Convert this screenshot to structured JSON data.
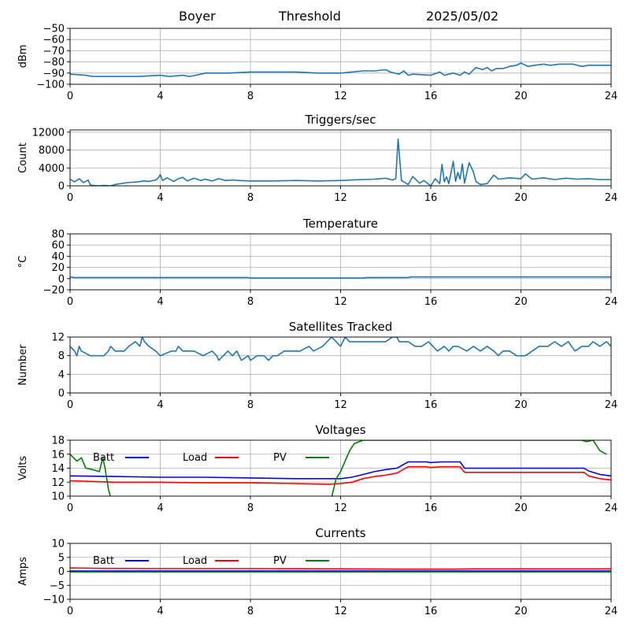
{
  "header": {
    "station": "Boyer",
    "label": "Threshold",
    "date": "2025/05/02"
  },
  "colors": {
    "series": "#1f77b4",
    "batt": "#0000ff",
    "load": "#ff0000",
    "pv": "#008000",
    "grid": "#b0b0b0"
  },
  "chart_data": [
    {
      "id": "threshold",
      "type": "line",
      "title": "",
      "xlabel": "",
      "ylabel": "dBm",
      "xlim": [
        0,
        24
      ],
      "ylim": [
        -100,
        -50
      ],
      "xticks": [
        0,
        4,
        8,
        12,
        16,
        20,
        24
      ],
      "yticks": [
        -100,
        -90,
        -80,
        -70,
        -60,
        -50
      ],
      "grid": true,
      "series": [
        {
          "color": "series",
          "x": [
            0,
            0.7,
            1,
            2,
            3,
            4,
            4.4,
            5,
            5.3,
            5.8,
            6,
            7,
            8,
            9,
            10,
            11,
            12,
            12.5,
            13,
            13.5,
            14,
            14.2,
            14.6,
            14.8,
            15,
            15.2,
            16,
            16.4,
            16.6,
            16.8,
            17,
            17.3,
            17.5,
            17.7,
            18,
            18.3,
            18.5,
            18.7,
            18.9,
            19.2,
            19.5,
            19.8,
            20,
            20.3,
            20.6,
            21,
            21.3,
            21.7,
            22,
            22.3,
            22.7,
            23,
            23.5,
            24
          ],
          "y": [
            -91,
            -92,
            -93,
            -93,
            -93,
            -92,
            -93,
            -92,
            -93,
            -91,
            -90,
            -90,
            -89,
            -89,
            -89,
            -90,
            -90,
            -89,
            -88,
            -88,
            -87,
            -89,
            -91,
            -88,
            -92,
            -91,
            -92,
            -89,
            -92,
            -91,
            -90,
            -92,
            -89,
            -91,
            -85,
            -87,
            -85,
            -88,
            -86,
            -86,
            -84,
            -83,
            -81,
            -84,
            -83,
            -82,
            -83,
            -82,
            -82,
            -82,
            -84,
            -83,
            -83,
            -83
          ]
        }
      ]
    },
    {
      "id": "triggers",
      "type": "line",
      "title": "Triggers/sec",
      "xlabel": "",
      "ylabel": "Count",
      "xlim": [
        0,
        24
      ],
      "ylim": [
        0,
        12500
      ],
      "xticks": [
        0,
        4,
        8,
        12,
        16,
        20,
        24
      ],
      "yticks": [
        0,
        4000,
        8000,
        12000
      ],
      "grid": true,
      "series": [
        {
          "color": "series",
          "x": [
            0,
            0.2,
            0.4,
            0.6,
            0.8,
            0.9,
            1.0,
            1.3,
            1.5,
            1.8,
            2.0,
            2.5,
            3.0,
            3.3,
            3.5,
            3.8,
            3.9,
            4.0,
            4.1,
            4.3,
            4.6,
            4.8,
            5.0,
            5.2,
            5.5,
            5.8,
            6.0,
            6.3,
            6.6,
            6.9,
            7.2,
            7.5,
            8,
            9,
            10,
            11,
            12,
            12.5,
            13,
            13.5,
            14,
            14.3,
            14.45,
            14.55,
            14.7,
            15.0,
            15.2,
            15.5,
            15.7,
            16.0,
            16.2,
            16.4,
            16.5,
            16.6,
            16.7,
            16.8,
            17.0,
            17.1,
            17.2,
            17.3,
            17.4,
            17.5,
            17.7,
            17.9,
            18.0,
            18.2,
            18.5,
            18.8,
            19,
            19.5,
            20,
            20.2,
            20.5,
            21,
            21.5,
            22,
            22.5,
            23,
            23.5,
            24
          ],
          "y": [
            1500,
            900,
            1600,
            700,
            1300,
            200,
            100,
            0,
            100,
            0,
            300,
            700,
            900,
            1100,
            1000,
            1300,
            1700,
            2500,
            1200,
            1800,
            1000,
            1600,
            1900,
            1100,
            1700,
            1200,
            1500,
            1100,
            1600,
            1200,
            1300,
            1200,
            1100,
            1100,
            1200,
            1100,
            1200,
            1300,
            1400,
            1500,
            1700,
            1300,
            1600,
            10500,
            1200,
            300,
            2100,
            600,
            1200,
            0,
            1600,
            500,
            4800,
            900,
            2000,
            500,
            5500,
            1000,
            3000,
            1500,
            4900,
            600,
            5200,
            3000,
            1000,
            300,
            500,
            2400,
            1500,
            1800,
            1600,
            2700,
            1500,
            1800,
            1400,
            1700,
            1500,
            1600,
            1400,
            1400
          ]
        }
      ]
    },
    {
      "id": "temperature",
      "type": "line",
      "title": "Temperature",
      "xlabel": "",
      "ylabel": "°C",
      "xlim": [
        0,
        24
      ],
      "ylim": [
        -20,
        80
      ],
      "xticks": [
        0,
        4,
        8,
        12,
        16,
        20,
        24
      ],
      "yticks": [
        -20,
        0,
        20,
        40,
        60,
        80
      ],
      "grid": true,
      "series": [
        {
          "color": "series",
          "x": [
            0,
            0.2,
            4,
            7.9,
            8,
            13,
            13.2,
            15,
            15.1,
            24
          ],
          "y": [
            3,
            2,
            2,
            2,
            1,
            1,
            2,
            2,
            3,
            3
          ]
        }
      ]
    },
    {
      "id": "satellites",
      "type": "line",
      "title": "Satellites Tracked",
      "xlabel": "",
      "ylabel": "Number",
      "xlim": [
        0,
        24
      ],
      "ylim": [
        0,
        12
      ],
      "xticks": [
        0,
        4,
        8,
        12,
        16,
        20,
        24
      ],
      "yticks": [
        0,
        4,
        8,
        12
      ],
      "grid": true,
      "series": [
        {
          "color": "series",
          "x": [
            0,
            0.2,
            0.3,
            0.4,
            0.5,
            0.9,
            1.5,
            1.7,
            1.8,
            2.0,
            2.4,
            2.6,
            2.9,
            3.1,
            3.2,
            3.3,
            3.5,
            3.8,
            4.0,
            4.5,
            4.7,
            4.8,
            5.0,
            5.5,
            5.9,
            6.3,
            6.5,
            6.6,
            6.8,
            7.0,
            7.2,
            7.4,
            7.6,
            7.9,
            8.0,
            8.3,
            8.6,
            8.8,
            9.0,
            9.2,
            9.5,
            9.8,
            10.2,
            10.6,
            10.8,
            11.2,
            11.4,
            11.6,
            11.8,
            12.0,
            12.2,
            12.4,
            12.6,
            13.0,
            13.5,
            14.0,
            14.3,
            14.5,
            14.6,
            15.0,
            15.3,
            15.6,
            15.9,
            16.3,
            16.6,
            16.8,
            17.0,
            17.2,
            17.6,
            17.9,
            18.2,
            18.5,
            18.8,
            19.0,
            19.2,
            19.5,
            19.8,
            20.2,
            20.5,
            20.8,
            21.2,
            21.5,
            21.8,
            22.1,
            22.4,
            22.7,
            23.0,
            23.2,
            23.5,
            23.8,
            24
          ],
          "y": [
            10,
            9,
            8,
            10,
            9,
            8,
            8,
            9,
            10,
            9,
            9,
            10,
            11,
            10,
            12,
            11,
            10,
            9,
            8,
            9,
            9,
            10,
            9,
            9,
            8,
            9,
            8,
            7,
            8,
            9,
            8,
            9,
            7,
            8,
            7,
            8,
            8,
            7,
            8,
            8,
            9,
            9,
            9,
            10,
            9,
            10,
            11,
            12,
            11,
            10,
            12,
            11,
            11,
            11,
            11,
            11,
            12,
            12,
            11,
            11,
            10,
            10,
            11,
            9,
            10,
            9,
            10,
            10,
            9,
            10,
            9,
            10,
            9,
            8,
            9,
            9,
            8,
            8,
            9,
            10,
            10,
            11,
            10,
            11,
            9,
            10,
            10,
            11,
            10,
            11,
            10
          ]
        }
      ]
    },
    {
      "id": "voltages",
      "type": "line",
      "title": "Voltages",
      "xlabel": "",
      "ylabel": "Volts",
      "xlim": [
        0,
        24
      ],
      "ylim": [
        10,
        18
      ],
      "xticks": [
        0,
        4,
        8,
        12,
        16,
        20,
        24
      ],
      "yticks": [
        10,
        12,
        14,
        16,
        18
      ],
      "grid": true,
      "legend": [
        "Batt",
        "Load",
        "PV"
      ],
      "series": [
        {
          "name": "Batt",
          "color": "batt",
          "x": [
            0,
            2,
            4,
            6,
            8,
            10,
            11.5,
            12,
            12.5,
            13,
            13.5,
            14,
            14.5,
            15,
            15.8,
            16,
            16.5,
            17.3,
            17.5,
            18,
            20,
            22,
            22.8,
            23,
            23.5,
            24
          ],
          "y": [
            12.9,
            12.8,
            12.7,
            12.7,
            12.6,
            12.5,
            12.5,
            12.5,
            12.7,
            13.1,
            13.5,
            13.8,
            14.0,
            14.9,
            14.9,
            14.8,
            14.9,
            14.9,
            14.0,
            14.0,
            14.0,
            14.0,
            14.0,
            13.6,
            13.1,
            12.9
          ]
        },
        {
          "name": "Load",
          "color": "load",
          "x": [
            0,
            2,
            4,
            6,
            8,
            10,
            11.5,
            12,
            12.5,
            13,
            13.5,
            14,
            14.5,
            15,
            15.8,
            16,
            16.5,
            17.3,
            17.5,
            18,
            20,
            22,
            22.8,
            23,
            23.5,
            24
          ],
          "y": [
            12.2,
            12.0,
            12.0,
            11.9,
            11.9,
            11.8,
            11.7,
            11.8,
            12.0,
            12.5,
            12.8,
            13.0,
            13.3,
            14.2,
            14.2,
            14.1,
            14.2,
            14.2,
            13.4,
            13.4,
            13.4,
            13.4,
            13.4,
            12.9,
            12.5,
            12.3
          ]
        },
        {
          "name": "PV",
          "color": "pv",
          "x": [
            0,
            0.3,
            0.5,
            0.7,
            1.0,
            1.3,
            1.45,
            1.55,
            1.7,
            1.8,
            11.6,
            11.8,
            12.0,
            12.2,
            12.4,
            12.6,
            13.0,
            14.8,
            22.7,
            22.9,
            23.2,
            23.5,
            23.8
          ],
          "y": [
            16.0,
            15.0,
            15.5,
            14.0,
            13.8,
            13.5,
            15.5,
            14.0,
            11.0,
            9.8,
            9.8,
            12.5,
            13.5,
            15.0,
            16.5,
            17.5,
            18.0,
            18.0,
            18.0,
            17.8,
            18.0,
            16.5,
            16.0
          ]
        }
      ]
    },
    {
      "id": "currents",
      "type": "line",
      "title": "Currents",
      "xlabel": "",
      "ylabel": "Amps",
      "xlim": [
        0,
        24
      ],
      "ylim": [
        -10,
        10
      ],
      "xticks": [
        0,
        4,
        8,
        12,
        16,
        20,
        24
      ],
      "yticks": [
        -10,
        -5,
        0,
        5,
        10
      ],
      "grid": true,
      "legend": [
        "Batt",
        "Load",
        "PV"
      ],
      "series": [
        {
          "name": "Batt",
          "color": "batt",
          "x": [
            0,
            24
          ],
          "y": [
            0.1,
            0.1
          ]
        },
        {
          "name": "Load",
          "color": "load",
          "x": [
            0,
            1,
            4,
            8,
            12,
            15,
            16,
            17,
            18,
            20,
            24
          ],
          "y": [
            1.2,
            1.1,
            1.0,
            1.0,
            0.9,
            0.8,
            0.8,
            0.8,
            0.9,
            0.9,
            0.9
          ]
        },
        {
          "name": "PV",
          "color": "pv",
          "x": [
            0,
            24
          ],
          "y": [
            -0.2,
            -0.2
          ]
        }
      ]
    }
  ]
}
